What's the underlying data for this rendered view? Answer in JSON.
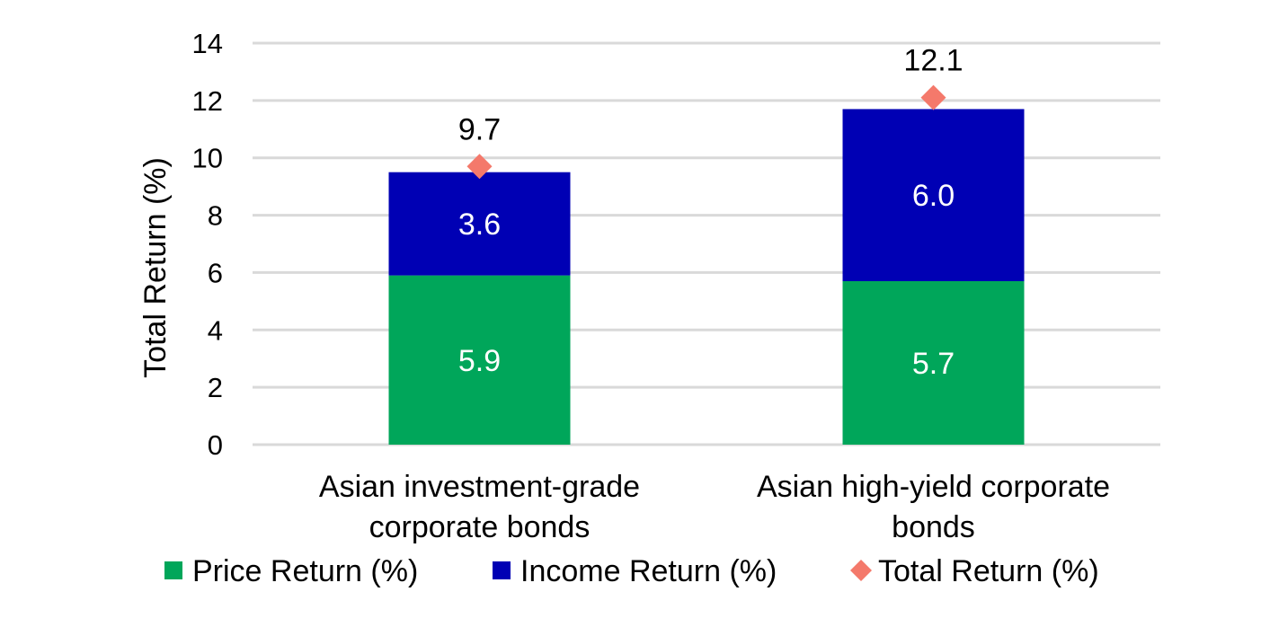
{
  "chart_data": {
    "type": "bar",
    "stacked": true,
    "categories": [
      [
        "Asian investment-grade",
        "corporate bonds"
      ],
      [
        "Asian high-yield corporate",
        "bonds"
      ]
    ],
    "series": [
      {
        "name": "Price Return (%)",
        "color": "#00A65A",
        "values": [
          5.9,
          5.7
        ],
        "labels": [
          "5.9",
          "5.7"
        ]
      },
      {
        "name": "Income Return (%)",
        "color": "#0000B4",
        "values": [
          3.6,
          6.0
        ],
        "labels": [
          "3.6",
          "6.0"
        ]
      }
    ],
    "total": {
      "name": "Total Return (%)",
      "color": "#F4796B",
      "marker": "diamond",
      "values": [
        9.7,
        12.1
      ],
      "labels": [
        "9.7",
        "12.1"
      ]
    },
    "ylabel": "Total Return (%)",
    "xlabel": "",
    "ylim": [
      0,
      14
    ],
    "yticks": [
      "0",
      "2",
      "4",
      "6",
      "8",
      "10",
      "12",
      "14"
    ],
    "grid": true,
    "legend_position": "bottom",
    "colors": {
      "gridline": "#D9D9D9",
      "text": "#000000",
      "bar_label": "#FFFFFF"
    }
  }
}
